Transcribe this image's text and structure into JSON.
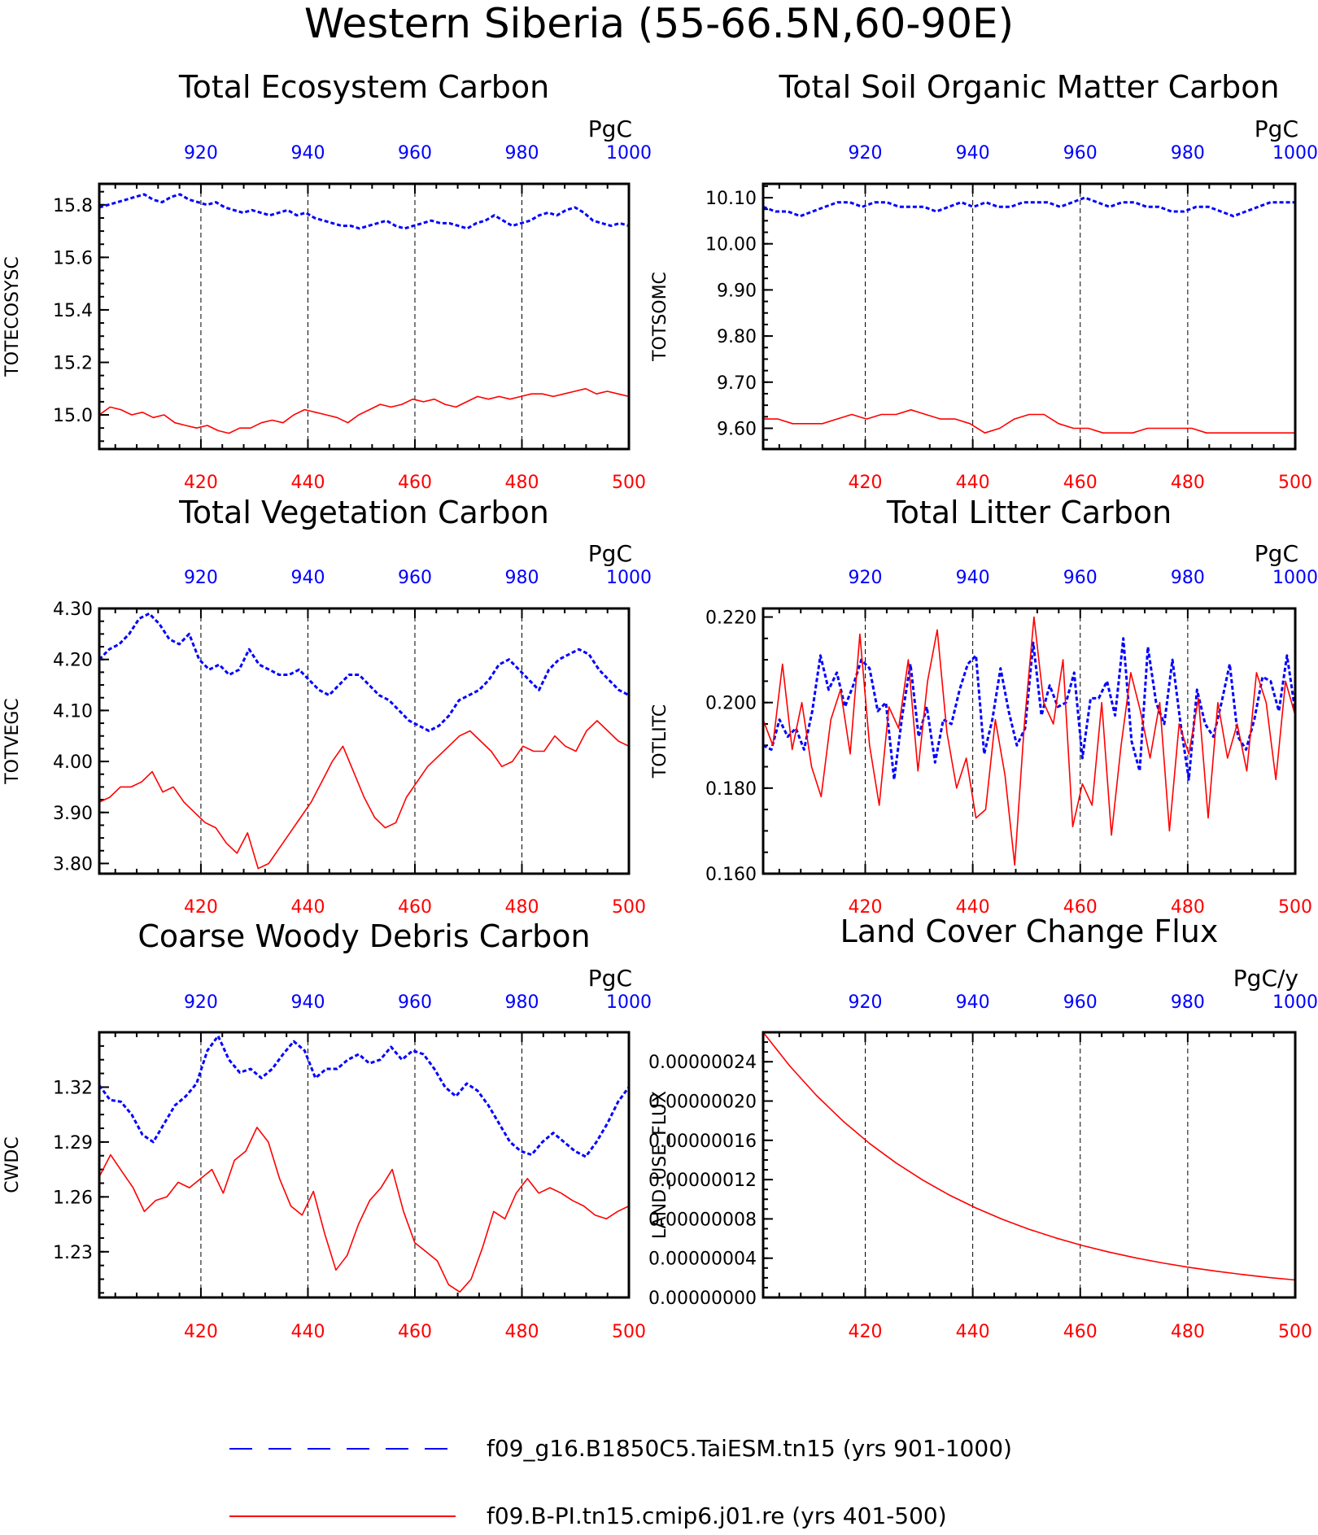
{
  "figure_title": "Western Siberia (55-66.5N,60-90E)",
  "colors": {
    "series_1": "#0000ff",
    "series_2": "#ff0000"
  },
  "legend": [
    {
      "label": "f09_g16.B1850C5.TaiESM.tn15 (yrs 901-1000)",
      "color": "#0000ff",
      "style": "dashed"
    },
    {
      "label": "f09.B-PI.tn15.cmip6.j01.re (yrs 401-500)",
      "color": "#ff0000",
      "style": "solid"
    }
  ],
  "chart_data": [
    {
      "type": "line",
      "title": "Total Ecosystem Carbon",
      "ylabel": "TOTECOSYSC",
      "units": "PgC",
      "ylim": [
        14.87,
        15.88
      ],
      "yticks": [
        "15.0",
        "15.2",
        "15.4",
        "15.6",
        "15.8"
      ],
      "ytick_values": [
        15.0,
        15.2,
        15.4,
        15.6,
        15.8
      ],
      "x_bottom_ticks": [
        "420",
        "440",
        "460",
        "480",
        "500"
      ],
      "x_top_ticks": [
        "920",
        "940",
        "960",
        "980",
        "1000"
      ],
      "series": [
        {
          "color": "#0000ff",
          "dashed": true,
          "x_start": 901,
          "values": [
            15.79,
            15.8,
            15.81,
            15.82,
            15.83,
            15.84,
            15.82,
            15.81,
            15.83,
            15.84,
            15.82,
            15.81,
            15.8,
            15.81,
            15.79,
            15.78,
            15.77,
            15.78,
            15.77,
            15.76,
            15.77,
            15.78,
            15.76,
            15.77,
            15.75,
            15.74,
            15.73,
            15.72,
            15.72,
            15.71,
            15.72,
            15.73,
            15.74,
            15.72,
            15.71,
            15.72,
            15.73,
            15.74,
            15.73,
            15.73,
            15.72,
            15.71,
            15.73,
            15.74,
            15.76,
            15.74,
            15.72,
            15.73,
            15.74,
            15.76,
            15.77,
            15.76,
            15.78,
            15.79,
            15.77,
            15.74,
            15.73,
            15.72,
            15.73,
            15.72
          ]
        },
        {
          "color": "#ff0000",
          "dashed": false,
          "x_start": 401,
          "values": [
            15.0,
            15.03,
            15.02,
            15.0,
            15.01,
            14.99,
            15.0,
            14.97,
            14.96,
            14.95,
            14.96,
            14.94,
            14.93,
            14.95,
            14.95,
            14.97,
            14.98,
            14.97,
            15.0,
            15.02,
            15.01,
            15.0,
            14.99,
            14.97,
            15.0,
            15.02,
            15.04,
            15.03,
            15.04,
            15.06,
            15.05,
            15.06,
            15.04,
            15.03,
            15.05,
            15.07,
            15.06,
            15.07,
            15.06,
            15.07,
            15.08,
            15.08,
            15.07,
            15.08,
            15.09,
            15.1,
            15.08,
            15.09,
            15.08,
            15.07
          ]
        }
      ]
    },
    {
      "type": "line",
      "title": "Total Soil Organic Matter Carbon",
      "ylabel": "TOTSOMC",
      "units": "PgC",
      "ylim": [
        9.555,
        10.13
      ],
      "yticks": [
        "9.60",
        "9.70",
        "9.80",
        "9.90",
        "10.00",
        "10.10"
      ],
      "ytick_values": [
        9.6,
        9.7,
        9.8,
        9.9,
        10.0,
        10.1
      ],
      "x_bottom_ticks": [
        "420",
        "440",
        "460",
        "480",
        "500"
      ],
      "x_top_ticks": [
        "920",
        "940",
        "960",
        "980",
        "1000"
      ],
      "series": [
        {
          "color": "#0000ff",
          "dashed": true,
          "x_start": 901,
          "values": [
            10.08,
            10.07,
            10.07,
            10.06,
            10.07,
            10.08,
            10.09,
            10.09,
            10.08,
            10.09,
            10.09,
            10.08,
            10.08,
            10.08,
            10.07,
            10.08,
            10.09,
            10.08,
            10.09,
            10.08,
            10.08,
            10.09,
            10.09,
            10.09,
            10.08,
            10.09,
            10.1,
            10.09,
            10.08,
            10.09,
            10.09,
            10.08,
            10.08,
            10.07,
            10.07,
            10.08,
            10.08,
            10.07,
            10.06,
            10.07,
            10.08,
            10.09,
            10.09,
            10.09
          ]
        },
        {
          "color": "#ff0000",
          "dashed": false,
          "x_start": 401,
          "values": [
            9.62,
            9.62,
            9.61,
            9.61,
            9.61,
            9.62,
            9.63,
            9.62,
            9.63,
            9.63,
            9.64,
            9.63,
            9.62,
            9.62,
            9.61,
            9.59,
            9.6,
            9.62,
            9.63,
            9.63,
            9.61,
            9.6,
            9.6,
            9.59,
            9.59,
            9.59,
            9.6,
            9.6,
            9.6,
            9.6,
            9.59,
            9.59,
            9.59,
            9.59,
            9.59,
            9.59,
            9.59
          ]
        }
      ]
    },
    {
      "type": "line",
      "title": "Total Vegetation Carbon",
      "ylabel": "TOTVEGC",
      "units": "PgC",
      "ylim": [
        3.78,
        4.3
      ],
      "yticks": [
        "3.80",
        "3.90",
        "4.00",
        "4.10",
        "4.20",
        "4.30"
      ],
      "ytick_values": [
        3.8,
        3.9,
        4.0,
        4.1,
        4.2,
        4.3
      ],
      "x_bottom_ticks": [
        "420",
        "440",
        "460",
        "480",
        "500"
      ],
      "x_top_ticks": [
        "920",
        "940",
        "960",
        "980",
        "1000"
      ],
      "series": [
        {
          "color": "#0000ff",
          "dashed": true,
          "x_start": 901,
          "values": [
            4.2,
            4.22,
            4.23,
            4.25,
            4.28,
            4.29,
            4.27,
            4.24,
            4.23,
            4.25,
            4.2,
            4.18,
            4.19,
            4.17,
            4.18,
            4.22,
            4.19,
            4.18,
            4.17,
            4.17,
            4.18,
            4.16,
            4.14,
            4.13,
            4.15,
            4.17,
            4.17,
            4.15,
            4.13,
            4.12,
            4.1,
            4.08,
            4.07,
            4.06,
            4.07,
            4.09,
            4.12,
            4.13,
            4.14,
            4.16,
            4.19,
            4.2,
            4.18,
            4.16,
            4.14,
            4.18,
            4.2,
            4.21,
            4.22,
            4.21,
            4.18,
            4.16,
            4.14,
            4.13
          ]
        },
        {
          "color": "#ff0000",
          "dashed": false,
          "x_start": 401,
          "values": [
            3.92,
            3.93,
            3.95,
            3.95,
            3.96,
            3.98,
            3.94,
            3.95,
            3.92,
            3.9,
            3.88,
            3.87,
            3.84,
            3.82,
            3.86,
            3.79,
            3.8,
            3.83,
            3.86,
            3.89,
            3.92,
            3.96,
            4.0,
            4.03,
            3.98,
            3.93,
            3.89,
            3.87,
            3.88,
            3.93,
            3.96,
            3.99,
            4.01,
            4.03,
            4.05,
            4.06,
            4.04,
            4.02,
            3.99,
            4.0,
            4.03,
            4.02,
            4.02,
            4.05,
            4.03,
            4.02,
            4.06,
            4.08,
            4.06,
            4.04,
            4.03
          ]
        }
      ]
    },
    {
      "type": "line",
      "title": "Total Litter Carbon",
      "ylabel": "TOTLITC",
      "units": "PgC",
      "ylim": [
        0.16,
        0.222
      ],
      "yticks": [
        "0.160",
        "0.180",
        "0.200",
        "0.220"
      ],
      "ytick_values": [
        0.16,
        0.18,
        0.2,
        0.22
      ],
      "x_bottom_ticks": [
        "420",
        "440",
        "460",
        "480",
        "500"
      ],
      "x_top_ticks": [
        "920",
        "940",
        "960",
        "980",
        "1000"
      ],
      "series": [
        {
          "color": "#0000ff",
          "dashed": true,
          "x_start": 901,
          "values": [
            0.19,
            0.189,
            0.196,
            0.192,
            0.194,
            0.189,
            0.198,
            0.211,
            0.203,
            0.207,
            0.199,
            0.204,
            0.21,
            0.208,
            0.198,
            0.2,
            0.182,
            0.197,
            0.209,
            0.192,
            0.199,
            0.186,
            0.196,
            0.195,
            0.203,
            0.209,
            0.211,
            0.188,
            0.196,
            0.208,
            0.198,
            0.19,
            0.194,
            0.214,
            0.197,
            0.204,
            0.199,
            0.2,
            0.207,
            0.187,
            0.201,
            0.201,
            0.205,
            0.197,
            0.215,
            0.191,
            0.184,
            0.213,
            0.2,
            0.195,
            0.21,
            0.195,
            0.182,
            0.203,
            0.195,
            0.192,
            0.2,
            0.209,
            0.192,
            0.189,
            0.196,
            0.206,
            0.205,
            0.198,
            0.211,
            0.198
          ]
        },
        {
          "color": "#ff0000",
          "dashed": false,
          "x_start": 401,
          "values": [
            0.196,
            0.19,
            0.209,
            0.189,
            0.2,
            0.185,
            0.178,
            0.196,
            0.203,
            0.188,
            0.216,
            0.19,
            0.176,
            0.199,
            0.194,
            0.21,
            0.184,
            0.205,
            0.217,
            0.193,
            0.18,
            0.187,
            0.173,
            0.175,
            0.196,
            0.183,
            0.162,
            0.195,
            0.22,
            0.2,
            0.195,
            0.21,
            0.171,
            0.181,
            0.176,
            0.2,
            0.169,
            0.19,
            0.207,
            0.198,
            0.187,
            0.2,
            0.17,
            0.195,
            0.188,
            0.201,
            0.173,
            0.2,
            0.187,
            0.195,
            0.184,
            0.207,
            0.2,
            0.182,
            0.205,
            0.197
          ]
        }
      ]
    },
    {
      "type": "line",
      "title": "Coarse Woody Debris Carbon",
      "ylabel": "CWDC",
      "units": "PgC",
      "ylim": [
        1.205,
        1.35
      ],
      "yticks": [
        "1.23",
        "1.26",
        "1.29",
        "1.32"
      ],
      "ytick_values": [
        1.23,
        1.26,
        1.29,
        1.32
      ],
      "x_bottom_ticks": [
        "420",
        "440",
        "460",
        "480",
        "500"
      ],
      "x_top_ticks": [
        "920",
        "940",
        "960",
        "980",
        "1000"
      ],
      "series": [
        {
          "color": "#0000ff",
          "dashed": true,
          "x_start": 901,
          "values": [
            1.321,
            1.313,
            1.312,
            1.305,
            1.294,
            1.29,
            1.3,
            1.31,
            1.315,
            1.322,
            1.34,
            1.348,
            1.335,
            1.328,
            1.33,
            1.325,
            1.33,
            1.338,
            1.345,
            1.34,
            1.325,
            1.33,
            1.33,
            1.335,
            1.338,
            1.333,
            1.335,
            1.342,
            1.335,
            1.34,
            1.338,
            1.33,
            1.32,
            1.315,
            1.322,
            1.318,
            1.31,
            1.3,
            1.29,
            1.285,
            1.283,
            1.29,
            1.295,
            1.29,
            1.285,
            1.282,
            1.29,
            1.3,
            1.312,
            1.32
          ]
        },
        {
          "color": "#ff0000",
          "dashed": false,
          "x_start": 401,
          "values": [
            1.271,
            1.283,
            1.274,
            1.265,
            1.252,
            1.258,
            1.26,
            1.268,
            1.265,
            1.27,
            1.275,
            1.262,
            1.28,
            1.285,
            1.298,
            1.29,
            1.27,
            1.255,
            1.25,
            1.263,
            1.24,
            1.22,
            1.228,
            1.245,
            1.258,
            1.265,
            1.275,
            1.252,
            1.235,
            1.23,
            1.225,
            1.212,
            1.208,
            1.215,
            1.232,
            1.252,
            1.248,
            1.262,
            1.27,
            1.262,
            1.265,
            1.262,
            1.258,
            1.255,
            1.25,
            1.248,
            1.252,
            1.255
          ]
        }
      ]
    },
    {
      "type": "line",
      "title": "Land Cover Change Flux",
      "ylabel": "LAND_USE_FLUX",
      "units": "PgC/y",
      "ylim": [
        0.0,
        2.7e-07
      ],
      "yticks": [
        "0.00000000",
        "0.00000004",
        "0.00000008",
        "0.00000012",
        "0.00000016",
        "0.00000020",
        "0.00000024"
      ],
      "ytick_values": [
        0.0,
        4e-08,
        8e-08,
        1.2e-07,
        1.6e-07,
        2e-07,
        2.4e-07
      ],
      "x_bottom_ticks": [
        "420",
        "440",
        "460",
        "480",
        "500"
      ],
      "x_top_ticks": [
        "920",
        "940",
        "960",
        "980",
        "1000"
      ],
      "series": [
        {
          "color": "#ff0000",
          "dashed": false,
          "x_start": 401,
          "values": [
            2.7e-07,
            2.357e-07,
            2.058e-07,
            1.796e-07,
            1.568e-07,
            1.369e-07,
            1.195e-07,
            1.043e-07,
            9.11e-08,
            7.95e-08,
            6.94e-08,
            6.06e-08,
            5.29e-08,
            4.62e-08,
            4.03e-08,
            3.52e-08,
            3.07e-08,
            2.68e-08,
            2.34e-08,
            2.04e-08,
            1.78e-08
          ]
        }
      ]
    }
  ]
}
